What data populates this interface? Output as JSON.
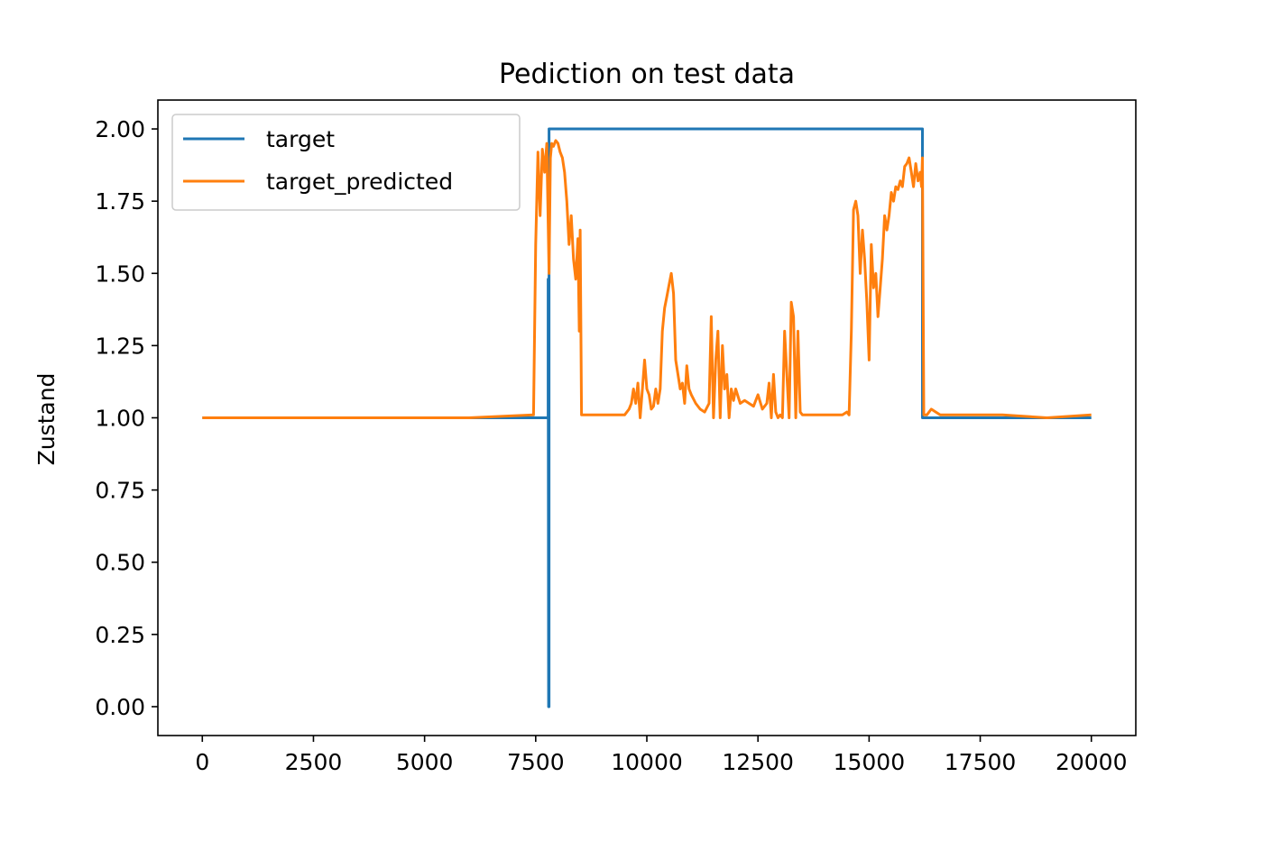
{
  "chart_data": {
    "type": "line",
    "title": "Pediction on test data",
    "xlabel": "",
    "ylabel": "Zustand",
    "xlim": [
      -1000,
      21000
    ],
    "ylim": [
      -0.1,
      2.1
    ],
    "xticks": [
      0,
      2500,
      5000,
      7500,
      10000,
      12500,
      15000,
      17500,
      20000
    ],
    "xtick_labels": [
      "0",
      "2500",
      "5000",
      "7500",
      "10000",
      "12500",
      "15000",
      "17500",
      "20000"
    ],
    "yticks": [
      0.0,
      0.25,
      0.5,
      0.75,
      1.0,
      1.25,
      1.5,
      1.75,
      2.0
    ],
    "ytick_labels": [
      "0.00",
      "0.25",
      "0.50",
      "0.75",
      "1.00",
      "1.25",
      "1.50",
      "1.75",
      "2.00"
    ],
    "grid": false,
    "legend_position": "upper-left",
    "series": [
      {
        "name": "target",
        "color": "#1f77b4",
        "x": [
          0,
          7780,
          7780,
          7790,
          7800,
          7800,
          16200,
          16200,
          20000
        ],
        "y": [
          1.0,
          1.0,
          1.48,
          0.0,
          0.0,
          2.0,
          2.0,
          1.0,
          1.0
        ]
      },
      {
        "name": "target_predicted",
        "color": "#ff7f0e",
        "x": [
          0,
          3000,
          6000,
          7450,
          7500,
          7550,
          7600,
          7650,
          7700,
          7750,
          7800,
          7830,
          7860,
          7900,
          7950,
          8000,
          8050,
          8100,
          8150,
          8200,
          8250,
          8300,
          8350,
          8400,
          8450,
          8480,
          8500,
          8530,
          8550,
          8600,
          9000,
          9500,
          9600,
          9650,
          9700,
          9750,
          9800,
          9850,
          9900,
          9950,
          10000,
          10050,
          10100,
          10150,
          10200,
          10250,
          10300,
          10350,
          10400,
          10450,
          10500,
          10550,
          10600,
          10650,
          10700,
          10750,
          10800,
          10850,
          10900,
          10950,
          11000,
          11100,
          11200,
          11300,
          11400,
          11450,
          11500,
          11550,
          11600,
          11650,
          11700,
          11750,
          11800,
          11850,
          11900,
          11950,
          12000,
          12100,
          12200,
          12300,
          12400,
          12500,
          12600,
          12700,
          12750,
          12800,
          12850,
          12900,
          12950,
          13000,
          13050,
          13100,
          13200,
          13250,
          13300,
          13350,
          13400,
          13450,
          13500,
          13600,
          14000,
          14300,
          14400,
          14500,
          14550,
          14600,
          14650,
          14700,
          14750,
          14800,
          14850,
          14900,
          14950,
          15000,
          15050,
          15100,
          15150,
          15200,
          15250,
          15300,
          15350,
          15400,
          15450,
          15500,
          15550,
          15600,
          15650,
          15700,
          15750,
          15800,
          15850,
          15900,
          15950,
          16000,
          16050,
          16100,
          16150,
          16180,
          16200,
          16230,
          16300,
          16400,
          16500,
          16600,
          17000,
          18000,
          19000,
          20000
        ],
        "y": [
          1.0,
          1.0,
          1.0,
          1.01,
          1.6,
          1.92,
          1.7,
          1.93,
          1.85,
          1.95,
          1.5,
          1.9,
          1.95,
          1.94,
          1.96,
          1.95,
          1.92,
          1.9,
          1.85,
          1.75,
          1.6,
          1.7,
          1.55,
          1.48,
          1.62,
          1.3,
          1.65,
          1.01,
          1.01,
          1.01,
          1.01,
          1.01,
          1.03,
          1.05,
          1.1,
          1.05,
          1.12,
          1.0,
          1.1,
          1.2,
          1.1,
          1.08,
          1.03,
          1.04,
          1.1,
          1.05,
          1.1,
          1.3,
          1.38,
          1.42,
          1.46,
          1.5,
          1.43,
          1.2,
          1.15,
          1.1,
          1.12,
          1.05,
          1.18,
          1.1,
          1.08,
          1.05,
          1.03,
          1.02,
          1.05,
          1.35,
          1.0,
          1.2,
          1.3,
          1.0,
          1.25,
          1.1,
          1.15,
          1.0,
          1.1,
          1.06,
          1.1,
          1.05,
          1.06,
          1.05,
          1.04,
          1.08,
          1.03,
          1.05,
          1.12,
          1.0,
          1.15,
          1.02,
          1.0,
          1.01,
          1.0,
          1.3,
          1.0,
          1.4,
          1.35,
          1.0,
          1.3,
          1.02,
          1.01,
          1.01,
          1.01,
          1.01,
          1.01,
          1.02,
          1.01,
          1.3,
          1.72,
          1.75,
          1.7,
          1.5,
          1.65,
          1.55,
          1.4,
          1.2,
          1.6,
          1.45,
          1.5,
          1.35,
          1.45,
          1.55,
          1.7,
          1.65,
          1.7,
          1.78,
          1.75,
          1.8,
          1.79,
          1.82,
          1.8,
          1.87,
          1.88,
          1.9,
          1.85,
          1.8,
          1.88,
          1.82,
          1.85,
          1.8,
          1.9,
          1.01,
          1.01,
          1.03,
          1.02,
          1.01,
          1.01,
          1.01,
          1.0,
          1.01
        ]
      }
    ]
  }
}
